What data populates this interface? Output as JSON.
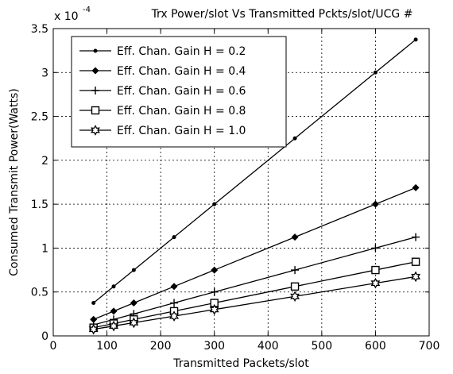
{
  "chart_data": {
    "type": "line",
    "title": "Trx Power/slot Vs Transmitted Pckts/slot/UCG #",
    "xlabel": "Transmitted Packets/slot",
    "ylabel": "Consumed Transmit Power(Watts)",
    "y_exponent_label": "x 10",
    "y_exponent": "-4",
    "xlim": [
      0,
      700
    ],
    "ylim": [
      0,
      3.5
    ],
    "x_ticks": [
      0,
      100,
      200,
      300,
      400,
      500,
      600,
      700
    ],
    "x_tick_labels": [
      "0",
      "100",
      "200",
      "300",
      "400",
      "500",
      "600",
      "700"
    ],
    "y_ticks": [
      0,
      0.5,
      1,
      1.5,
      2,
      2.5,
      3,
      3.5
    ],
    "y_tick_labels": [
      "0",
      "0.5",
      "1",
      "1.5",
      "2",
      "2.5",
      "3",
      "3.5"
    ],
    "grid": true,
    "legend_position": "top-left",
    "x": [
      75,
      112.5,
      150,
      225,
      300,
      450,
      600,
      675
    ],
    "series": [
      {
        "name": "Eff. Chan. Gain H = 0.2",
        "marker": "dot",
        "values": [
          0.375,
          0.5625,
          0.75,
          1.125,
          1.5,
          2.25,
          3.0,
          3.375
        ]
      },
      {
        "name": "Eff. Chan. Gain H = 0.4",
        "marker": "diamond",
        "values": [
          0.1875,
          0.28125,
          0.375,
          0.5625,
          0.75,
          1.125,
          1.5,
          1.6875
        ]
      },
      {
        "name": "Eff. Chan. Gain H = 0.6",
        "marker": "plus",
        "values": [
          0.125,
          0.1875,
          0.25,
          0.375,
          0.5,
          0.75,
          1.0,
          1.125
        ]
      },
      {
        "name": "Eff. Chan. Gain H = 0.8",
        "marker": "square",
        "values": [
          0.09375,
          0.140625,
          0.1875,
          0.28125,
          0.375,
          0.5625,
          0.75,
          0.84375
        ]
      },
      {
        "name": "Eff. Chan. Gain H = 1.0",
        "marker": "hexagram",
        "values": [
          0.075,
          0.1125,
          0.15,
          0.225,
          0.3,
          0.45,
          0.6,
          0.675
        ]
      }
    ],
    "colors": {
      "line": "#000000",
      "grid": "#000000",
      "background": "#ffffff"
    }
  }
}
